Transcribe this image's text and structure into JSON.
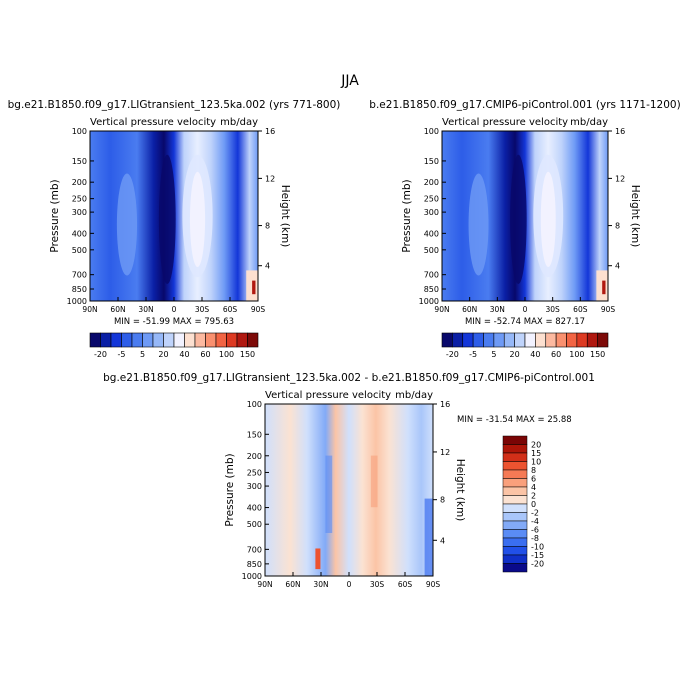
{
  "figure": {
    "title": "JJA"
  },
  "chart_data": [
    {
      "type": "heatmap",
      "title": "bg.e21.B1850.f09_g17.LIGtransient_123.5ka.002 (yrs 771-800)",
      "subtitle_left": "Vertical pressure velocity",
      "subtitle_right": "mb/day",
      "xlabel": "",
      "ylabel": "Pressure (mb)",
      "ylabel_right": "Height (km)",
      "x_ticks": [
        "90N",
        "60N",
        "30N",
        "0",
        "30S",
        "60S",
        "90S"
      ],
      "y_ticks": [
        "100",
        "150",
        "200",
        "250",
        "300",
        "400",
        "500",
        "700",
        "850",
        "1000"
      ],
      "y_right_ticks": [
        "16",
        "12",
        "8",
        "4"
      ],
      "stats": "MIN = -51.99   MAX = 795.63",
      "colorbar_labels": [
        "-20",
        "-5",
        "5",
        "20",
        "40",
        "60",
        "100",
        "150"
      ]
    },
    {
      "type": "heatmap",
      "title": "b.e21.B1850.f09_g17.CMIP6-piControl.001 (yrs 1171-1200)",
      "subtitle_left": "Vertical pressure velocity",
      "subtitle_right": "mb/day",
      "xlabel": "",
      "ylabel": "Pressure (mb)",
      "ylabel_right": "Height (km)",
      "x_ticks": [
        "90N",
        "60N",
        "30N",
        "0",
        "30S",
        "60S",
        "90S"
      ],
      "y_ticks": [
        "100",
        "150",
        "200",
        "250",
        "300",
        "400",
        "500",
        "700",
        "850",
        "1000"
      ],
      "y_right_ticks": [
        "16",
        "12",
        "8",
        "4"
      ],
      "stats": "MIN = -52.74   MAX = 827.17",
      "colorbar_labels": [
        "-20",
        "-5",
        "5",
        "20",
        "40",
        "60",
        "100",
        "150"
      ]
    },
    {
      "type": "heatmap",
      "title": "bg.e21.B1850.f09_g17.LIGtransient_123.5ka.002 - b.e21.B1850.f09_g17.CMIP6-piControl.001",
      "subtitle_left": "Vertical pressure velocity",
      "subtitle_right": "mb/day",
      "xlabel": "",
      "ylabel": "Pressure (mb)",
      "ylabel_right": "Height (km)",
      "x_ticks": [
        "90N",
        "60N",
        "30N",
        "0",
        "30S",
        "60S",
        "90S"
      ],
      "y_ticks": [
        "100",
        "150",
        "200",
        "250",
        "300",
        "400",
        "500",
        "700",
        "850",
        "1000"
      ],
      "y_right_ticks": [
        "16",
        "12",
        "8",
        "4"
      ],
      "stats": "MIN = -31.54   MAX =  25.88",
      "colorbar_labels": [
        "20",
        "15",
        "10",
        "8",
        "6",
        "4",
        "2",
        "0",
        "-2",
        "-4",
        "-6",
        "-8",
        "-10",
        "-15",
        "-20"
      ]
    }
  ],
  "colors": {
    "full_field_scale": [
      "#08086b",
      "#0a1fa5",
      "#1336d8",
      "#2d5de8",
      "#4a7cf0",
      "#6e9af5",
      "#96b8f8",
      "#bfd3fb",
      "#f2f2ff",
      "#fde0d0",
      "#fcb9a0",
      "#f9906f",
      "#f26443",
      "#dd3a22",
      "#b01810",
      "#7d0a08"
    ],
    "diff_scale": [
      "#0a0a8a",
      "#1030c8",
      "#2150e8",
      "#3a6ef0",
      "#5a8cf5",
      "#82aaf7",
      "#a9c6fa",
      "#d0e0fc",
      "#fbe2d2",
      "#fbc4a6",
      "#f9a07c",
      "#f57a55",
      "#ec5330",
      "#d22f18",
      "#ad1508",
      "#7a0505"
    ]
  }
}
